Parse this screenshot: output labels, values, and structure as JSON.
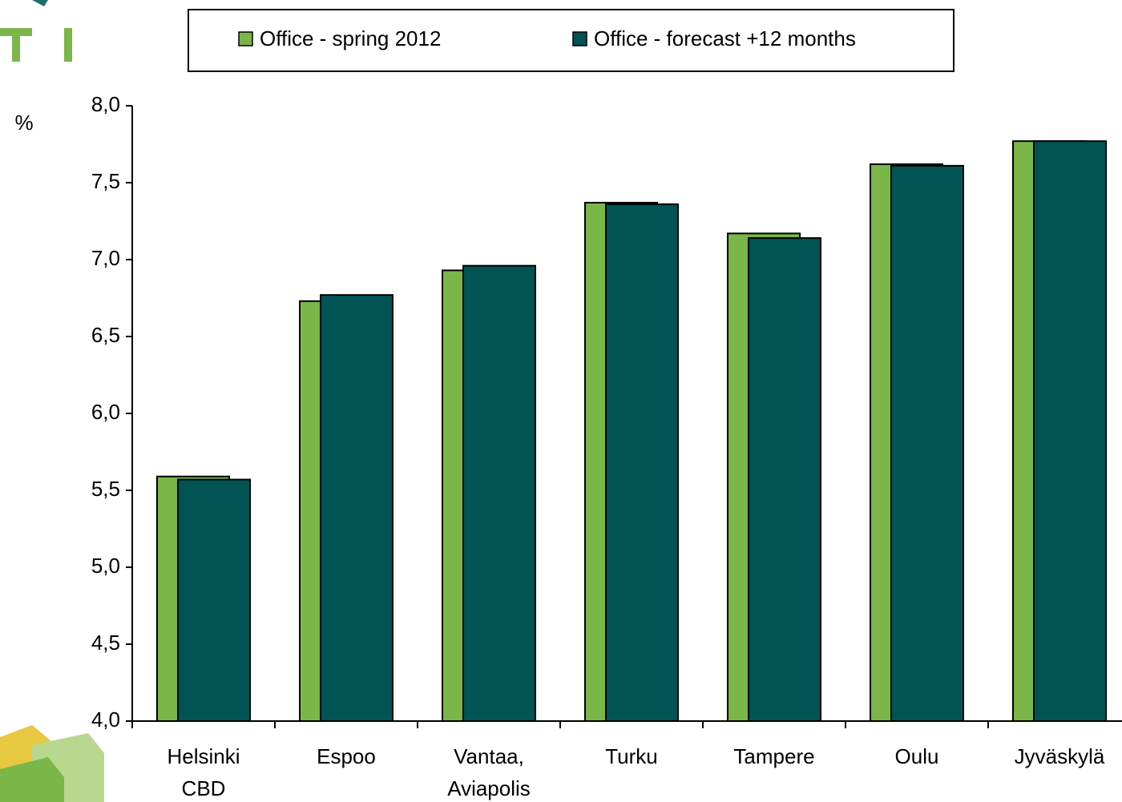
{
  "chart_data": {
    "type": "bar",
    "y_label": "%",
    "categories": [
      "Helsinki CBD",
      "Espoo",
      "Vantaa, Aviapolis",
      "Turku",
      "Tampere",
      "Oulu",
      "Jyväskylä"
    ],
    "series": [
      {
        "name": "Office - spring 2012",
        "color": "#7ab648",
        "values": [
          5.59,
          6.73,
          6.93,
          7.37,
          7.17,
          7.62,
          7.77
        ]
      },
      {
        "name": "Office - forecast +12 months",
        "color": "#005454",
        "values": [
          5.57,
          6.77,
          6.96,
          7.36,
          7.14,
          7.61,
          7.77
        ]
      }
    ],
    "ylim": [
      4,
      8
    ],
    "yticks": [
      {
        "value": 4,
        "label": "4,0"
      },
      {
        "value": 4.5,
        "label": "4,5"
      },
      {
        "value": 5,
        "label": "5,0"
      },
      {
        "value": 5.5,
        "label": "5,5"
      },
      {
        "value": 6,
        "label": "6,0"
      },
      {
        "value": 6.5,
        "label": "6,5"
      },
      {
        "value": 7,
        "label": "7,0"
      },
      {
        "value": 7.5,
        "label": "7,5"
      },
      {
        "value": 8,
        "label": "8,0"
      }
    ],
    "legend": "top"
  }
}
